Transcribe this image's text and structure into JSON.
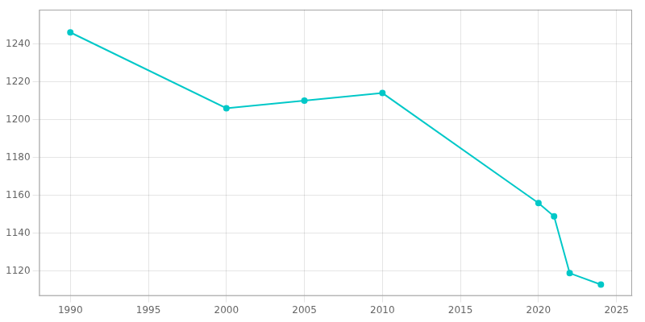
{
  "chart_data": {
    "type": "line",
    "x": [
      1990,
      2000,
      2005,
      2010,
      2020,
      2021,
      2022,
      2024
    ],
    "values": [
      1246,
      1206,
      1210,
      1214,
      1156,
      1149,
      1119,
      1113
    ],
    "color": "#00c8c8",
    "marker": "circle",
    "xlim": [
      1988,
      2026
    ],
    "ylim": [
      1107,
      1258
    ],
    "xticks": [
      1990,
      1995,
      2000,
      2005,
      2010,
      2015,
      2020,
      2025
    ],
    "yticks": [
      1120,
      1140,
      1160,
      1180,
      1200,
      1220,
      1240
    ],
    "grid": true
  }
}
